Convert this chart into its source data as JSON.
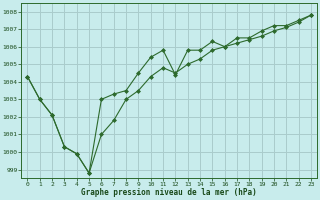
{
  "xlabel": "Graphe pression niveau de la mer (hPa)",
  "bg_color": "#c8ecec",
  "grid_color": "#aacccc",
  "line_color": "#2d6a2d",
  "xlim": [
    -0.5,
    23.5
  ],
  "ylim": [
    998.5,
    1008.5
  ],
  "yticks": [
    999,
    1000,
    1001,
    1002,
    1003,
    1004,
    1005,
    1006,
    1007,
    1008
  ],
  "xticks": [
    0,
    1,
    2,
    3,
    4,
    5,
    6,
    7,
    8,
    9,
    10,
    11,
    12,
    13,
    14,
    15,
    16,
    17,
    18,
    19,
    20,
    21,
    22,
    23
  ],
  "line1_x": [
    0,
    1,
    2,
    3,
    4,
    5,
    6,
    7,
    8,
    9,
    10,
    11,
    12,
    13,
    14,
    15,
    16,
    17,
    18,
    19,
    20,
    21,
    22,
    23
  ],
  "line1_y": [
    1004.3,
    1003.0,
    1002.1,
    1000.3,
    999.9,
    998.8,
    1001.0,
    1001.8,
    1003.0,
    1003.5,
    1004.3,
    1004.8,
    1004.5,
    1005.0,
    1005.3,
    1005.8,
    1006.0,
    1006.2,
    1006.4,
    1006.6,
    1006.9,
    1007.1,
    1007.4,
    1007.8
  ],
  "line2_x": [
    0,
    1,
    2,
    3,
    4,
    5,
    6,
    7,
    8,
    9,
    10,
    11,
    12,
    13,
    14,
    15,
    16,
    17,
    18,
    19,
    20,
    21,
    22,
    23
  ],
  "line2_y": [
    1004.3,
    1003.0,
    1002.1,
    1000.3,
    999.9,
    998.8,
    1003.0,
    1003.3,
    1003.5,
    1004.5,
    1005.4,
    1005.8,
    1004.4,
    1005.8,
    1005.8,
    1006.3,
    1006.0,
    1006.5,
    1006.5,
    1006.9,
    1007.2,
    1007.2,
    1007.5,
    1007.8
  ]
}
